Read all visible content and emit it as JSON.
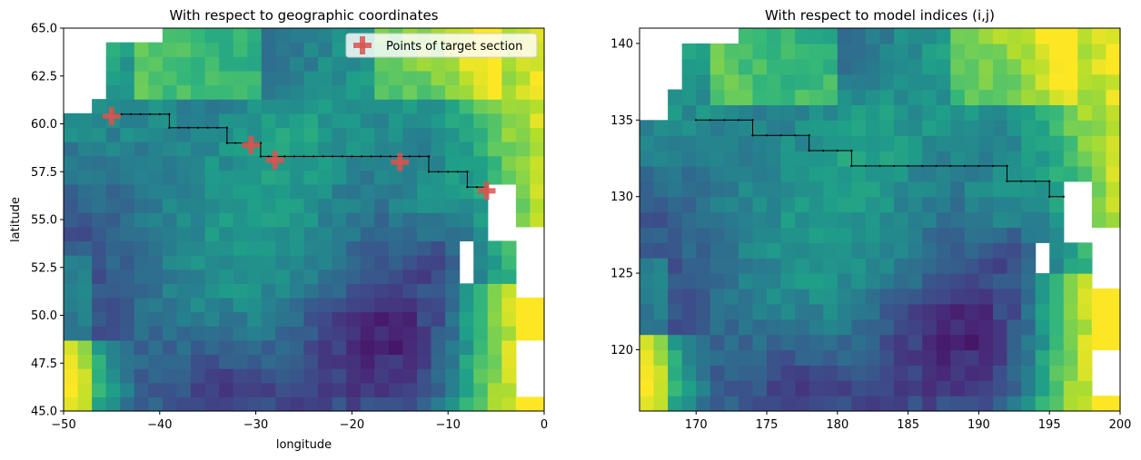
{
  "chart_data": [
    {
      "type": "heatmap",
      "title": "With respect to geographic coordinates",
      "xlabel": "longitude",
      "ylabel": "latitude",
      "xlim": [
        -50,
        0
      ],
      "ylim": [
        45,
        65
      ],
      "x_ticks": [
        -50,
        -40,
        -30,
        -20,
        -10,
        0
      ],
      "x_tick_labels": [
        "−50",
        "−40",
        "−30",
        "−20",
        "−10",
        "0"
      ],
      "y_ticks": [
        45.0,
        47.5,
        50.0,
        52.5,
        55.0,
        57.5,
        60.0,
        62.5,
        65.0
      ],
      "y_tick_labels": [
        "45.0",
        "47.5",
        "50.0",
        "52.5",
        "55.0",
        "57.5",
        "60.0",
        "62.5",
        "65.0"
      ],
      "colormap": "viridis",
      "legend": {
        "placement": "top-right",
        "entries": [
          {
            "label": "Points of target section",
            "marker": "plus",
            "color": "#d9534f"
          }
        ]
      },
      "series": [
        {
          "name": "Points of target section",
          "kind": "markers",
          "color": "#d9534f",
          "points": [
            [
              -45,
              60.4
            ],
            [
              -30.5,
              58.9
            ],
            [
              -28,
              58.1
            ],
            [
              -15,
              58.0
            ],
            [
              -6,
              56.5
            ]
          ]
        },
        {
          "kind": "section-path",
          "color": "#000000",
          "points": [
            [
              -45,
              60.5
            ],
            [
              -39,
              60.5
            ],
            [
              -39,
              59.8
            ],
            [
              -33,
              59.8
            ],
            [
              -33,
              59.0
            ],
            [
              -29.5,
              59.0
            ],
            [
              -29.5,
              58.3
            ],
            [
              -27,
              58.3
            ],
            [
              -12,
              58.3
            ],
            [
              -12,
              57.5
            ],
            [
              -8,
              57.5
            ],
            [
              -8,
              56.7
            ],
            [
              -6,
              56.7
            ]
          ]
        }
      ]
    },
    {
      "type": "heatmap",
      "title": "With respect to model indices (i,j)",
      "xlim": [
        166,
        200
      ],
      "ylim": [
        116,
        141
      ],
      "x_ticks": [
        170,
        175,
        180,
        185,
        190,
        195,
        200
      ],
      "x_tick_labels": [
        "170",
        "175",
        "180",
        "185",
        "190",
        "195",
        "200"
      ],
      "y_ticks": [
        120,
        125,
        130,
        135,
        140
      ],
      "y_tick_labels": [
        "120",
        "125",
        "130",
        "135",
        "140"
      ],
      "colormap": "viridis",
      "series": [
        {
          "kind": "section-path",
          "color": "#000000",
          "points": [
            [
              170,
              135
            ],
            [
              174,
              135
            ],
            [
              174,
              134
            ],
            [
              178,
              134
            ],
            [
              178,
              133
            ],
            [
              181,
              133
            ],
            [
              181,
              132
            ],
            [
              192,
              132
            ],
            [
              192,
              131
            ],
            [
              195,
              131
            ],
            [
              195,
              130
            ],
            [
              196,
              130
            ]
          ]
        }
      ]
    }
  ]
}
